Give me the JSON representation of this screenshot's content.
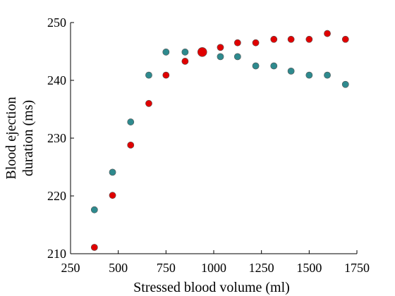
{
  "chart_data": {
    "type": "scatter",
    "xlabel": "Stressed blood volume (ml)",
    "ylabel": [
      "Blood ejection",
      "duration (ms)"
    ],
    "xlim": [
      250,
      1750
    ],
    "ylim": [
      210,
      250
    ],
    "xticks": [
      250,
      500,
      750,
      1000,
      1250,
      1500,
      1750
    ],
    "yticks": [
      210,
      220,
      230,
      240,
      250
    ],
    "grid": false,
    "legend": "none",
    "series": [
      {
        "color": "#2e8a8e",
        "x": [
          375,
          470,
          565,
          660,
          750,
          850,
          940,
          1035,
          1125,
          1220,
          1315,
          1405,
          1500,
          1595,
          1690
        ],
        "y": [
          217.6,
          224.1,
          232.8,
          240.9,
          244.9,
          244.9,
          244.9,
          244.1,
          244.1,
          242.5,
          242.5,
          241.6,
          240.9,
          240.9,
          239.3
        ]
      },
      {
        "color": "#e00000",
        "x": [
          375,
          470,
          565,
          660,
          750,
          850,
          940,
          1035,
          1125,
          1220,
          1315,
          1405,
          1500,
          1595,
          1690
        ],
        "y": [
          211.1,
          220.1,
          228.8,
          236.0,
          240.9,
          243.3,
          244.9,
          245.7,
          246.5,
          246.5,
          247.1,
          247.1,
          247.1,
          248.1,
          247.1
        ]
      }
    ]
  }
}
